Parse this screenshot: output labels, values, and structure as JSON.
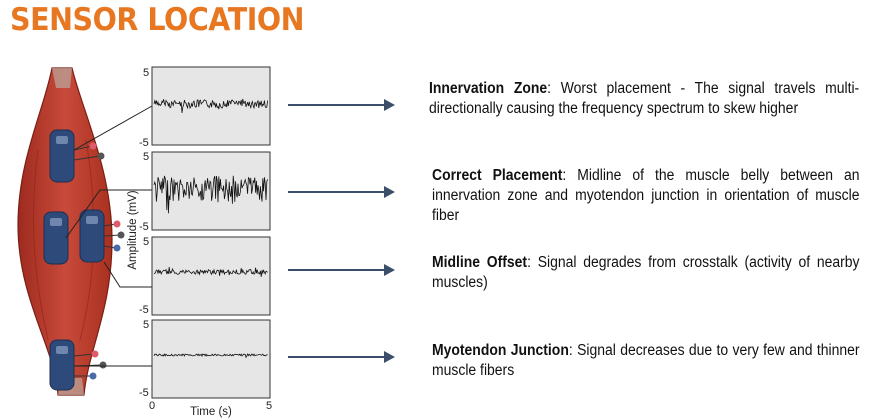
{
  "title": "SENSOR LOCATION",
  "plot": {
    "ylabel": "Amplitude (mV)",
    "xlabel": "Time (s)",
    "ticks": {
      "y_top": "5",
      "y_bottom": "-5",
      "x_start": "0",
      "x_end": "5"
    }
  },
  "placements": [
    {
      "name": "Innervation Zone",
      "text": ": Worst placement - The signal travels multi-directionally causing the frequency spectrum to skew higher"
    },
    {
      "name": "Correct Placement",
      "text": ": Midline of the muscle belly between an innervation zone and myotendon junction in orientation of muscle fiber"
    },
    {
      "name": "Midline Offset",
      "text": ": Signal degrades from crosstalk (activity of nearby muscles)"
    },
    {
      "name": "Myotendon Junction",
      "text": ": Signal decreases due to very few and thinner muscle fibers"
    }
  ],
  "colors": {
    "title": "#e87722",
    "muscle": "#c0392b",
    "sensor": "#2d4a7a",
    "arrow": "#3b4f6b"
  }
}
